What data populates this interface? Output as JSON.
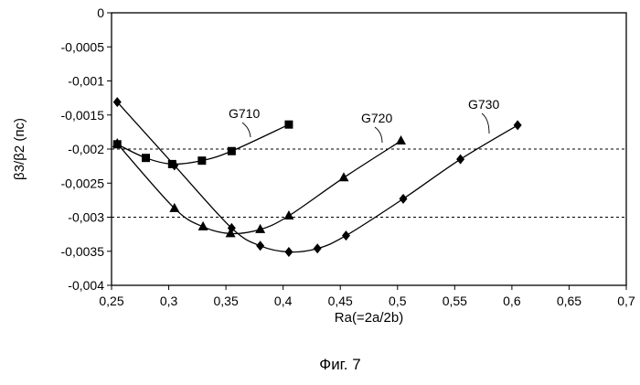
{
  "chart_data": {
    "type": "line",
    "xlabel": "Ra(=2a/2b)",
    "ylabel": "β3/β2 (пс)",
    "caption": "Фиг. 7",
    "xlim": [
      0.25,
      0.7
    ],
    "ylim": [
      -0.004,
      0
    ],
    "grid": false,
    "legend": "none",
    "xticks": [
      {
        "v": 0.25,
        "label": "0,25"
      },
      {
        "v": 0.3,
        "label": "0,3"
      },
      {
        "v": 0.35,
        "label": "0,35"
      },
      {
        "v": 0.4,
        "label": "0,4"
      },
      {
        "v": 0.45,
        "label": "0,45"
      },
      {
        "v": 0.5,
        "label": "0,5"
      },
      {
        "v": 0.55,
        "label": "0,55"
      },
      {
        "v": 0.6,
        "label": "0,6"
      },
      {
        "v": 0.65,
        "label": "0,65"
      },
      {
        "v": 0.7,
        "label": "0,7"
      }
    ],
    "yticks": [
      {
        "v": 0,
        "label": "0"
      },
      {
        "v": -0.0005,
        "label": "-0,0005"
      },
      {
        "v": -0.001,
        "label": "-0,001"
      },
      {
        "v": -0.0015,
        "label": "-0,0015"
      },
      {
        "v": -0.002,
        "label": "-0,002"
      },
      {
        "v": -0.0025,
        "label": "-0,0025"
      },
      {
        "v": -0.003,
        "label": "-0,003"
      },
      {
        "v": -0.0035,
        "label": "-0,0035"
      },
      {
        "v": -0.004,
        "label": "-0,004"
      }
    ],
    "reference_lines": [
      -0.002,
      -0.003
    ],
    "series": [
      {
        "name": "G710",
        "marker": "square",
        "x": [
          0.255,
          0.28,
          0.303,
          0.329,
          0.355,
          0.405
        ],
        "y": [
          -0.00193,
          -0.00213,
          -0.00222,
          -0.00217,
          -0.00203,
          -0.00164
        ]
      },
      {
        "name": "G720",
        "marker": "triangle",
        "x": [
          0.255,
          0.305,
          0.33,
          0.354,
          0.38,
          0.405,
          0.453,
          0.503
        ],
        "y": [
          -0.00192,
          -0.00287,
          -0.00314,
          -0.00324,
          -0.00318,
          -0.00298,
          -0.00242,
          -0.00188
        ]
      },
      {
        "name": "G730",
        "marker": "diamond",
        "x": [
          0.255,
          0.305,
          0.355,
          0.38,
          0.405,
          0.43,
          0.455,
          0.505,
          0.555,
          0.605
        ],
        "y": [
          -0.00131,
          -0.00224,
          -0.00316,
          -0.00342,
          -0.00351,
          -0.00346,
          -0.00327,
          -0.00273,
          -0.00215,
          -0.00165
        ]
      }
    ],
    "colors": {
      "line": "#000000",
      "marker": "#000000",
      "background": "#ffffff"
    }
  }
}
